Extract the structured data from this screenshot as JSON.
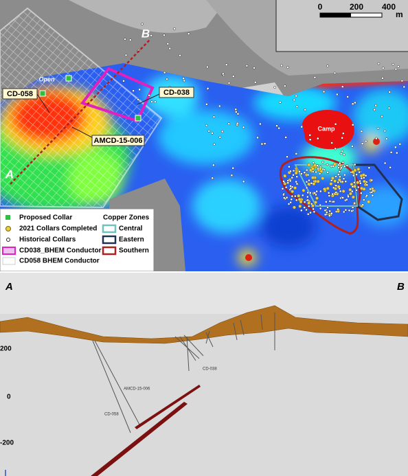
{
  "map": {
    "scale": {
      "labels": [
        0,
        200,
        400
      ],
      "unit": "m"
    },
    "section_ends": [
      "A",
      "B"
    ],
    "labels": {
      "open": "Open",
      "cd058": "CD-058",
      "cd038": "CD-038",
      "amcd": "AMCD-15-006",
      "camp": "Camp"
    },
    "legend": {
      "items": [
        "Proposed Collar",
        "2021 Collars Completed",
        "Historical  Collars",
        "CD038_BHEM Conductor",
        "CD058 BHEM Conductor"
      ],
      "zones_title": "Copper Zones",
      "zones": [
        "Central",
        "Eastern",
        "Southern"
      ]
    }
  },
  "section": {
    "ends": [
      "A",
      "B"
    ],
    "elevation_labels": [
      200,
      0,
      -200
    ],
    "hole_labels": [
      "CD-038",
      "AMCD-15-006",
      "CD-058"
    ]
  }
}
